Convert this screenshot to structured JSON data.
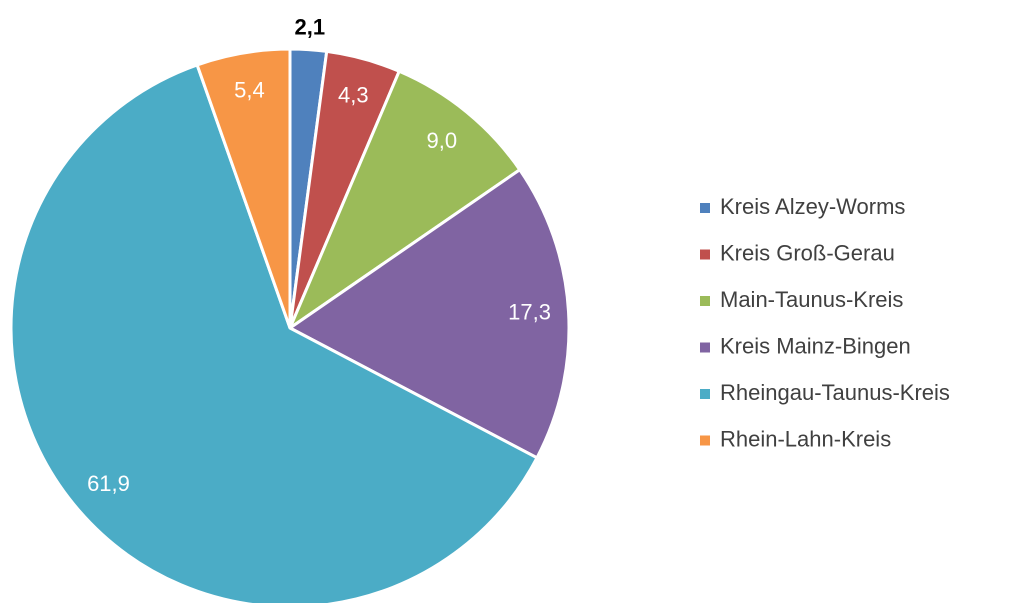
{
  "chart_data": {
    "type": "pie",
    "categories": [
      "Kreis Alzey-Worms",
      "Kreis Groß-Gerau",
      "Main-Taunus-Kreis",
      "Kreis Mainz-Bingen",
      "Rheingau-Taunus-Kreis",
      "Rhein-Lahn-Kreis"
    ],
    "values": [
      2.1,
      4.3,
      9.0,
      17.3,
      61.9,
      5.4
    ],
    "value_labels": [
      "2,1",
      "4,3",
      "9,0",
      "17,3",
      "61,9",
      "5,4"
    ],
    "colors": [
      "#4f81bd",
      "#c0504d",
      "#9bbb59",
      "#8064a2",
      "#4bacc6",
      "#f79646"
    ],
    "legend": "right"
  }
}
